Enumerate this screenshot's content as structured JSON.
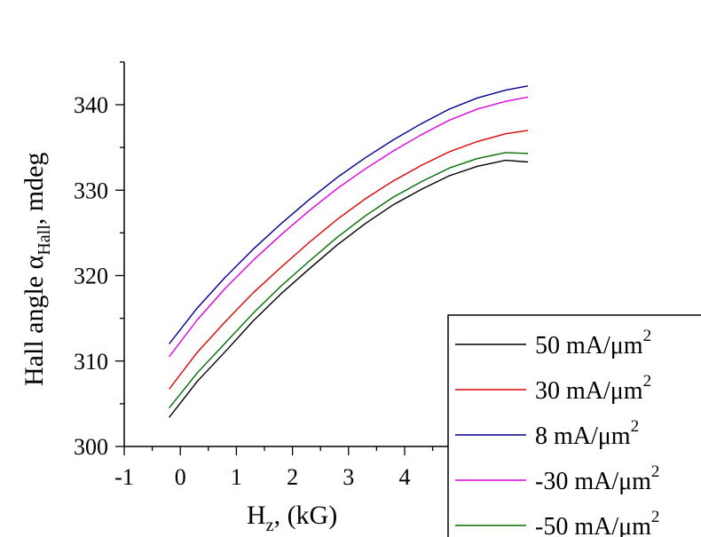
{
  "chart_data": {
    "type": "line",
    "xlabel": {
      "main": "H",
      "sub": "z",
      "rest": ", (kG)"
    },
    "ylabel": {
      "main": "Hall angle α",
      "sub": "Hall",
      "rest": ", mdeg"
    },
    "xlim": [
      -1,
      6.5
    ],
    "ylim": [
      300,
      345
    ],
    "xticks": [
      "-1",
      "0",
      "1",
      "2",
      "3",
      "4"
    ],
    "yticks": [
      "300",
      "310",
      "320",
      "330",
      "340"
    ],
    "legend_position": "bottom-right",
    "series": [
      {
        "name": "50 mA/μm",
        "sup": "2",
        "color": "#000000",
        "x": [
          -0.2,
          0.3,
          0.8,
          1.3,
          1.8,
          2.3,
          2.8,
          3.3,
          3.8,
          4.3,
          4.8,
          5.3,
          5.8,
          6.2
        ],
        "y": [
          303.4,
          307.6,
          311.1,
          314.7,
          317.9,
          320.8,
          323.6,
          326.1,
          328.3,
          330.1,
          331.7,
          332.8,
          333.5,
          333.3
        ]
      },
      {
        "name": "30 mA/μm",
        "sup": "2",
        "color": "#e00000",
        "x": [
          -0.2,
          0.3,
          0.8,
          1.3,
          1.8,
          2.3,
          2.8,
          3.3,
          3.8,
          4.3,
          4.8,
          5.3,
          5.8,
          6.2
        ],
        "y": [
          306.7,
          311.0,
          314.6,
          318.0,
          321.0,
          323.9,
          326.6,
          329.0,
          331.1,
          332.9,
          334.5,
          335.7,
          336.6,
          337.0
        ]
      },
      {
        "name": "8 mA/μm",
        "sup": "2",
        "color": "#000090",
        "x": [
          -0.2,
          0.3,
          0.8,
          1.3,
          1.8,
          2.3,
          2.8,
          3.3,
          3.8,
          4.3,
          4.8,
          5.3,
          5.8,
          6.2
        ],
        "y": [
          312.0,
          316.2,
          319.8,
          323.1,
          326.1,
          328.9,
          331.5,
          333.8,
          335.9,
          337.8,
          339.5,
          340.8,
          341.7,
          342.2
        ]
      },
      {
        "name": "-30 mA/μm",
        "sup": "2",
        "color": "#e000e0",
        "x": [
          -0.2,
          0.3,
          0.8,
          1.3,
          1.8,
          2.3,
          2.8,
          3.3,
          3.8,
          4.3,
          4.8,
          5.3,
          5.8,
          6.2
        ],
        "y": [
          310.5,
          314.8,
          318.5,
          321.8,
          324.8,
          327.6,
          330.2,
          332.5,
          334.6,
          336.5,
          338.2,
          339.5,
          340.4,
          340.9
        ]
      },
      {
        "name": "-50 mA/μm",
        "sup": "2",
        "color": "#007000",
        "x": [
          -0.2,
          0.3,
          0.8,
          1.3,
          1.8,
          2.3,
          2.8,
          3.3,
          3.8,
          4.3,
          4.8,
          5.3,
          5.8,
          6.2
        ],
        "y": [
          304.5,
          308.6,
          312.1,
          315.6,
          318.8,
          321.7,
          324.5,
          327.0,
          329.2,
          331.0,
          332.6,
          333.7,
          334.4,
          334.3
        ]
      }
    ]
  }
}
